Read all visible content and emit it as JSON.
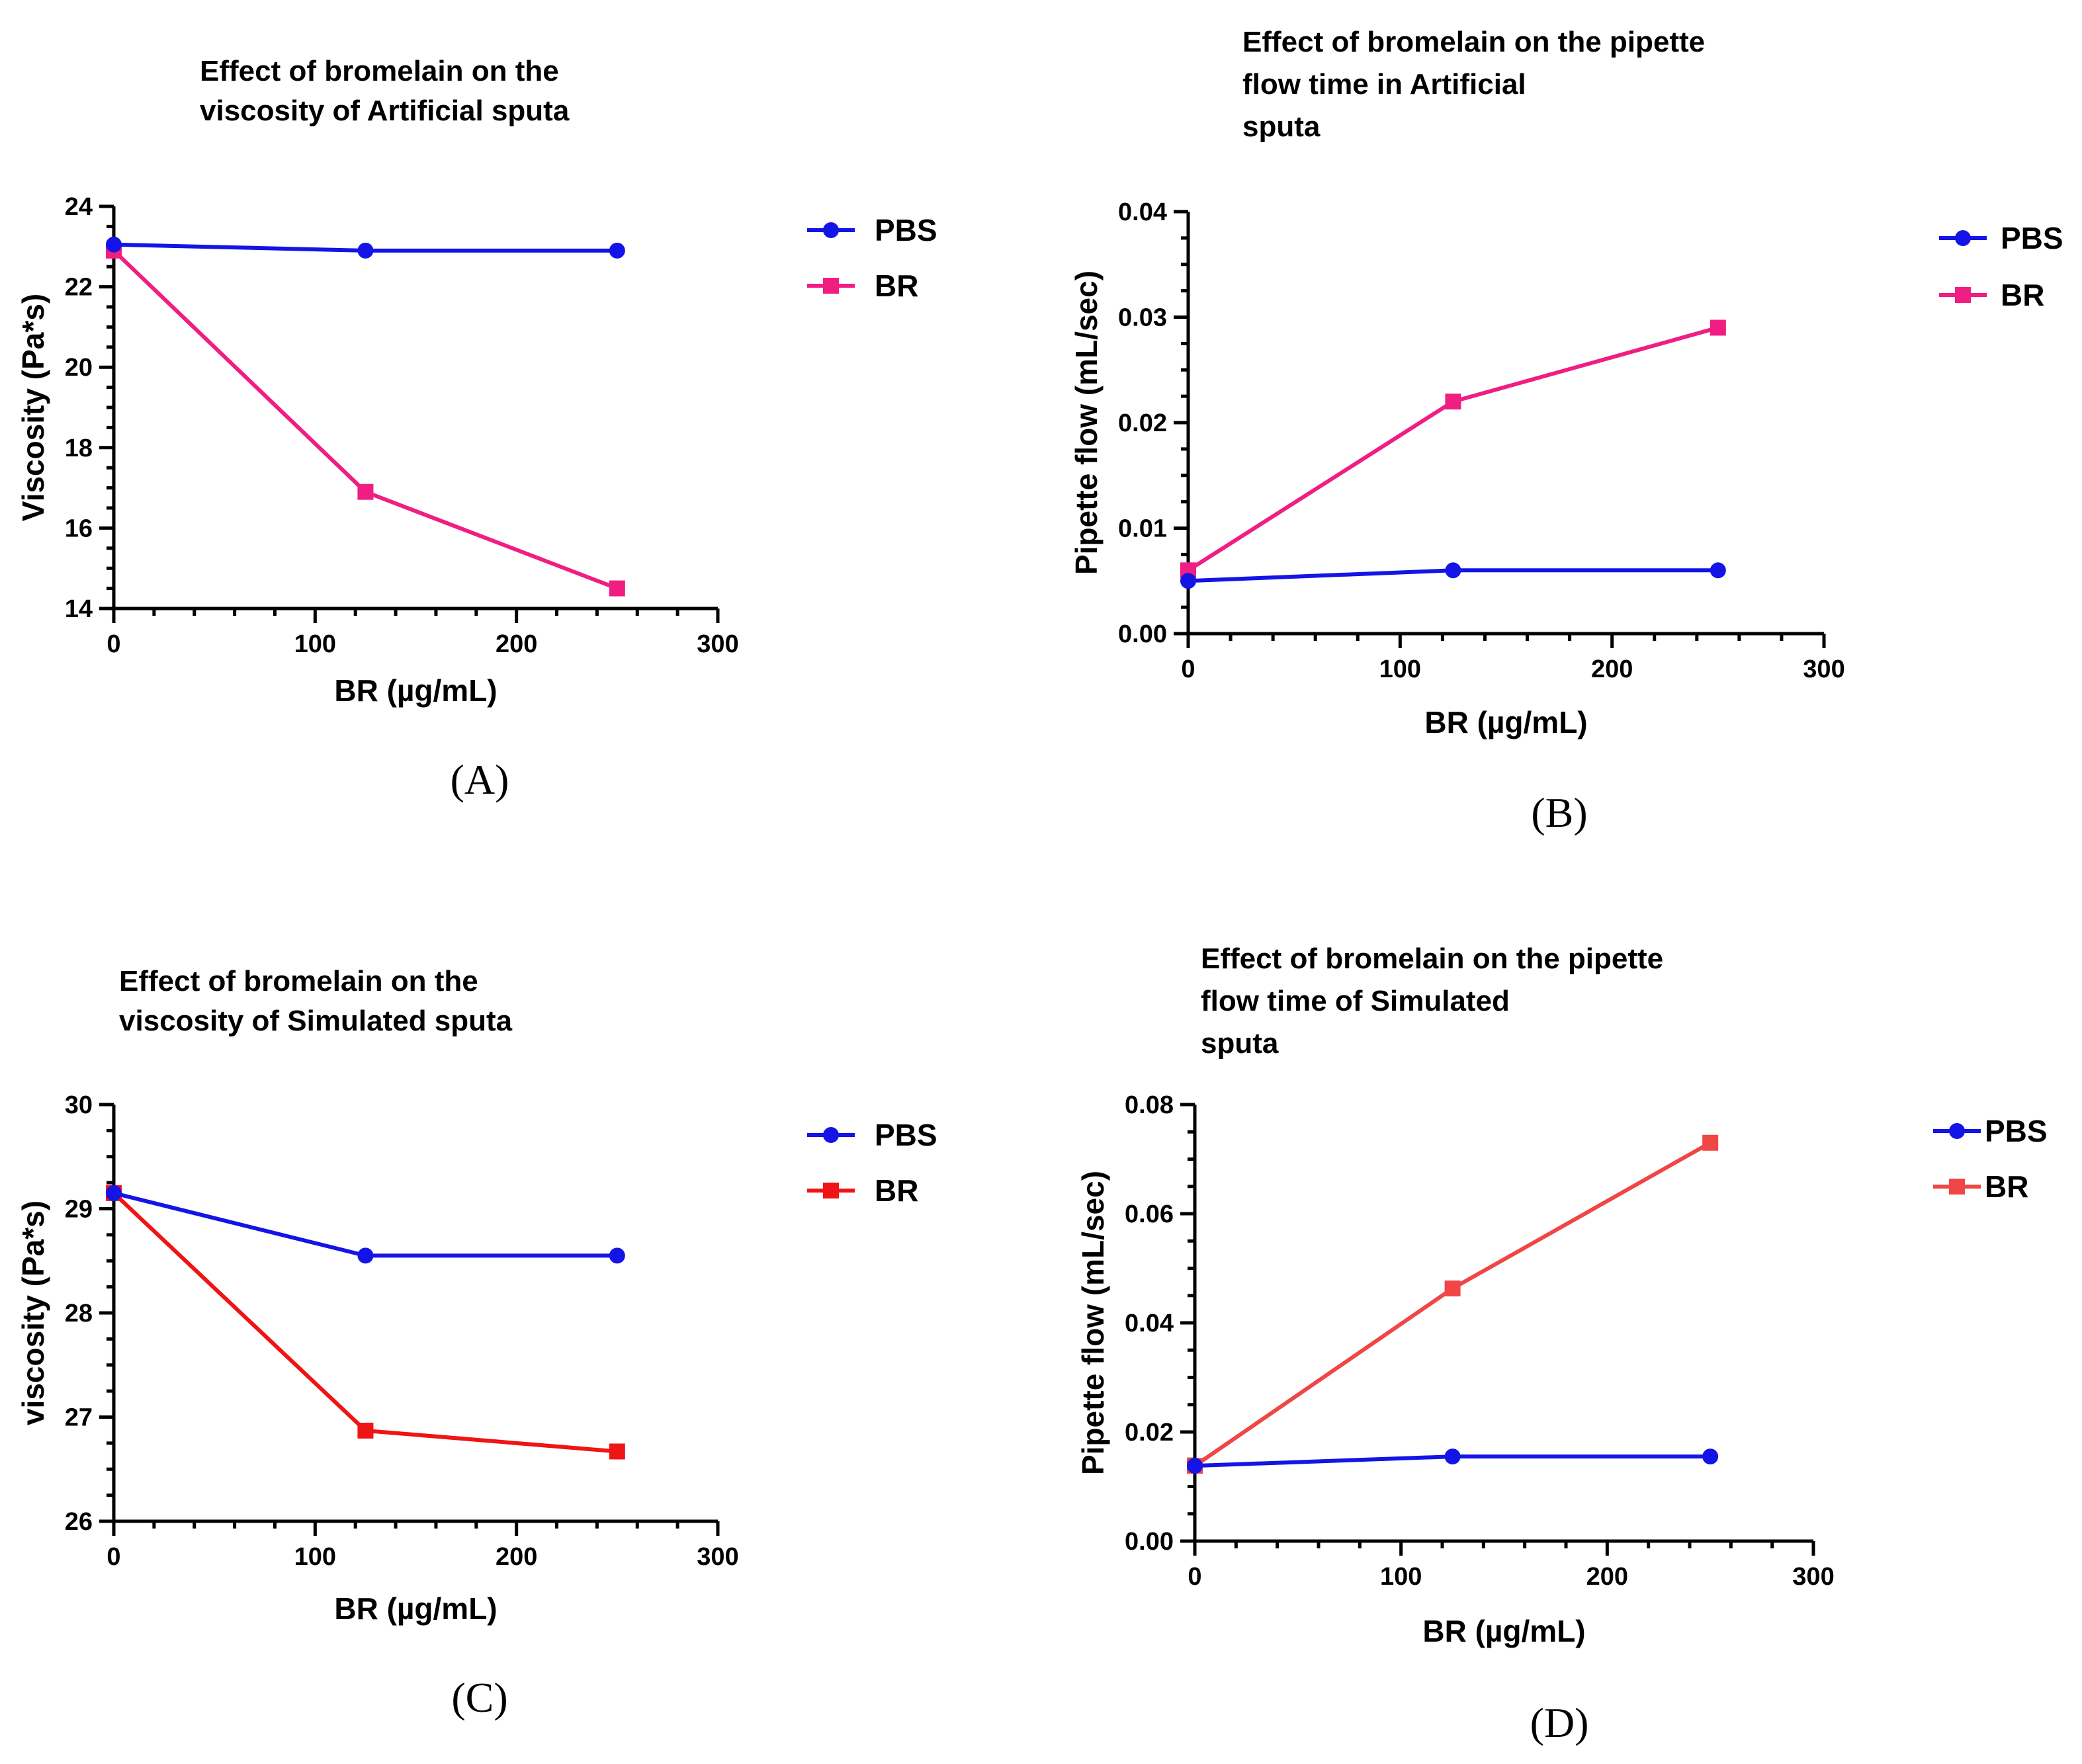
{
  "chart_data": [
    {
      "id": "A",
      "type": "line",
      "panel_label": "(A)",
      "title": [
        "Effect of bromelain on the",
        "viscosity of Artificial sputa"
      ],
      "xlabel": "BR (µg/mL)",
      "ylabel": "Viscosity (Pa*s)",
      "xlim": [
        0,
        300
      ],
      "ylim": [
        14,
        24
      ],
      "xticks": [
        0,
        100,
        200,
        300
      ],
      "yticks": [
        14,
        16,
        18,
        20,
        22,
        24
      ],
      "ytick_labels": [
        "14",
        "16",
        "18",
        "20",
        "22",
        "24"
      ],
      "x": [
        0,
        125,
        250
      ],
      "series": [
        {
          "name": "PBS",
          "marker": "circle",
          "color": "#1414e6",
          "values": [
            23.05,
            22.9,
            22.9
          ]
        },
        {
          "name": "BR",
          "marker": "square",
          "color": "#f01e82",
          "values": [
            22.9,
            16.9,
            14.5
          ]
        }
      ]
    },
    {
      "id": "B",
      "type": "line",
      "panel_label": "(B)",
      "title": [
        "Effect of bromelain on the pipette",
        "flow time in Artificial",
        "sputa"
      ],
      "xlabel": "BR (µg/mL)",
      "ylabel": "Pipette flow (mL/sec)",
      "xlim": [
        0,
        300
      ],
      "ylim": [
        0,
        0.04
      ],
      "xticks": [
        0,
        100,
        200,
        300
      ],
      "yticks": [
        0,
        0.01,
        0.02,
        0.03,
        0.04
      ],
      "ytick_labels": [
        "0.00",
        "0.01",
        "0.02",
        "0.03",
        "0.04"
      ],
      "x": [
        0,
        125,
        250
      ],
      "series": [
        {
          "name": "PBS",
          "marker": "circle",
          "color": "#1414e6",
          "values": [
            0.005,
            0.006,
            0.006
          ]
        },
        {
          "name": "BR",
          "marker": "square",
          "color": "#f01e82",
          "values": [
            0.006,
            0.022,
            0.029
          ]
        }
      ]
    },
    {
      "id": "C",
      "type": "line",
      "panel_label": "(C)",
      "title": [
        "Effect of bromelain on the",
        "viscosity of  Simulated sputa"
      ],
      "xlabel": "BR (µg/mL)",
      "ylabel": "viscosity (Pa*s)",
      "xlim": [
        0,
        300
      ],
      "ylim": [
        26,
        30
      ],
      "xticks": [
        0,
        100,
        200,
        300
      ],
      "yticks": [
        26,
        27,
        28,
        29,
        30
      ],
      "ytick_labels": [
        "26",
        "27",
        "28",
        "29",
        "30"
      ],
      "x": [
        0,
        125,
        250
      ],
      "series": [
        {
          "name": "PBS",
          "marker": "circle",
          "color": "#1414e6",
          "values": [
            29.15,
            28.55,
            28.55
          ]
        },
        {
          "name": "BR",
          "marker": "square",
          "color": "#f01414",
          "values": [
            29.15,
            26.87,
            26.67
          ]
        }
      ]
    },
    {
      "id": "D",
      "type": "line",
      "panel_label": "(D)",
      "title": [
        "Effect of bromelain on the pipette",
        "flow time  of  Simulated",
        "sputa"
      ],
      "xlabel": "BR (µg/mL)",
      "ylabel": "Pipette flow (mL/sec)",
      "xlim": [
        0,
        300
      ],
      "ylim": [
        0,
        0.08
      ],
      "xticks": [
        0,
        100,
        200,
        300
      ],
      "yticks": [
        0,
        0.02,
        0.04,
        0.06,
        0.08
      ],
      "ytick_labels": [
        "0.00",
        "0.02",
        "0.04",
        "0.06",
        "0.08"
      ],
      "x": [
        0,
        125,
        250
      ],
      "series": [
        {
          "name": "PBS",
          "marker": "circle",
          "color": "#1414e6",
          "values": [
            0.0138,
            0.0155,
            0.0155
          ]
        },
        {
          "name": "BR",
          "marker": "square",
          "color": "#f04646",
          "values": [
            0.0138,
            0.0463,
            0.073
          ]
        }
      ]
    }
  ]
}
